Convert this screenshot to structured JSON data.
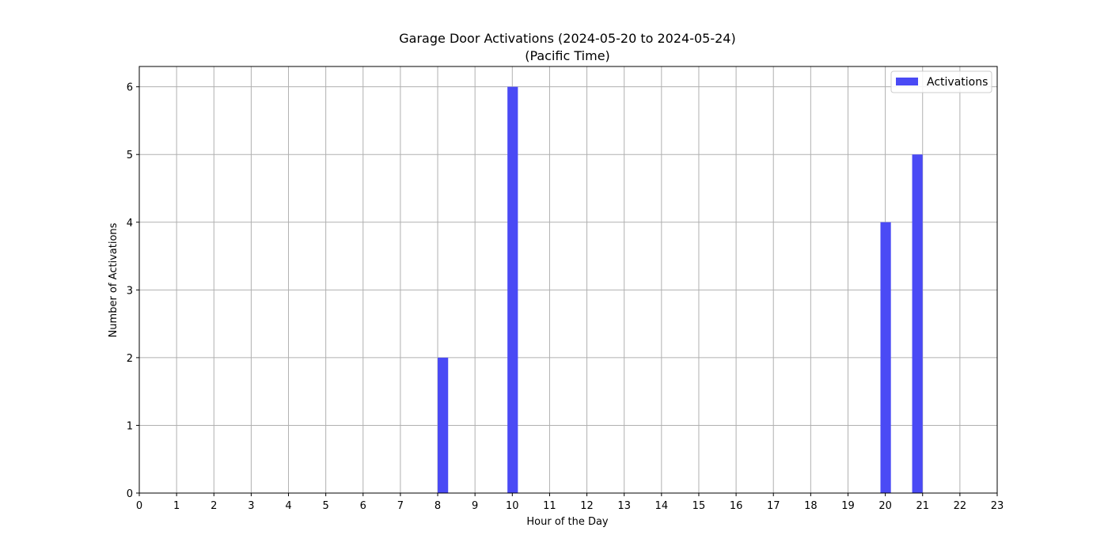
{
  "chart_data": {
    "type": "bar",
    "title_line1": "Garage Door Activations (2024-05-20 to 2024-05-24)",
    "title_line2": "(Pacific Time)",
    "xlabel": "Hour of the Day",
    "ylabel": "Number of Activations",
    "x_ticks": [
      0,
      1,
      2,
      3,
      4,
      5,
      6,
      7,
      8,
      9,
      10,
      11,
      12,
      13,
      14,
      15,
      16,
      17,
      18,
      19,
      20,
      21,
      22,
      23
    ],
    "y_ticks": [
      0,
      1,
      2,
      3,
      4,
      5,
      6
    ],
    "xlim": [
      0,
      23
    ],
    "ylim": [
      0,
      6.3
    ],
    "grid": true,
    "legend_position": "top-right",
    "series": [
      {
        "name": "Activations",
        "color": "#4a4af5",
        "bars": [
          {
            "x_start": 8.0,
            "x_end": 8.28,
            "value": 2
          },
          {
            "x_start": 9.87,
            "x_end": 10.15,
            "value": 6
          },
          {
            "x_start": 19.87,
            "x_end": 20.15,
            "value": 4
          },
          {
            "x_start": 20.72,
            "x_end": 21.0,
            "value": 5
          }
        ]
      }
    ]
  }
}
